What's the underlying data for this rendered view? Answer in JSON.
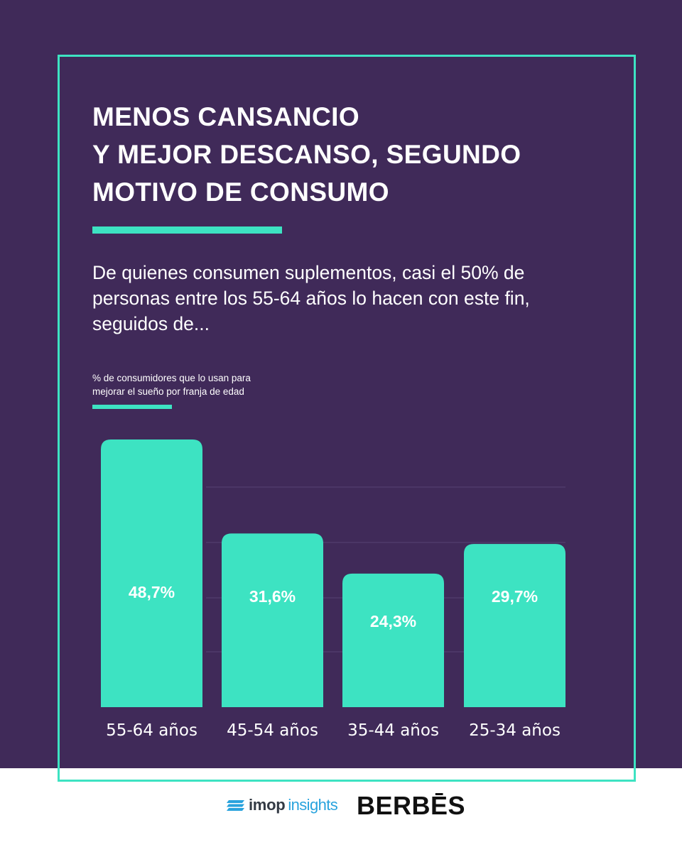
{
  "title": {
    "lines": [
      "MENOS CANSANCIO",
      "Y MEJOR DESCANSO, SEGUNDO",
      "MOTIVO DE CONSUMO"
    ]
  },
  "subtitle": {
    "lines": [
      "De quienes consumen suplementos, casi el 50% de",
      "personas entre los 55-64 años lo hacen con este fin,",
      "seguidos de..."
    ]
  },
  "chart_data": {
    "type": "bar",
    "caption_lines": [
      "% de consumidores que lo usan para",
      "mejorar el sueño por franja de edad"
    ],
    "categories": [
      "55-64 años",
      "45-54 años",
      "35-44 años",
      "25-34 años"
    ],
    "values": [
      48.7,
      31.6,
      24.3,
      29.7
    ],
    "value_labels": [
      "48,7%",
      "31,6%",
      "24,3%",
      "29,7%"
    ],
    "unit": "%",
    "ylim": [
      0,
      48.7
    ],
    "grid": true,
    "legend": "none"
  },
  "logos": {
    "imop_main": "imop",
    "imop_sub": "insights",
    "berbes": "BERBĒS"
  },
  "colors": {
    "background": "#402a59",
    "accent": "#3de3c2",
    "text": "#ffffff",
    "grid": "#4f3a6a",
    "imop_dark": "#333a44",
    "imop_blue": "#29a3dd",
    "berbes": "#111111"
  }
}
